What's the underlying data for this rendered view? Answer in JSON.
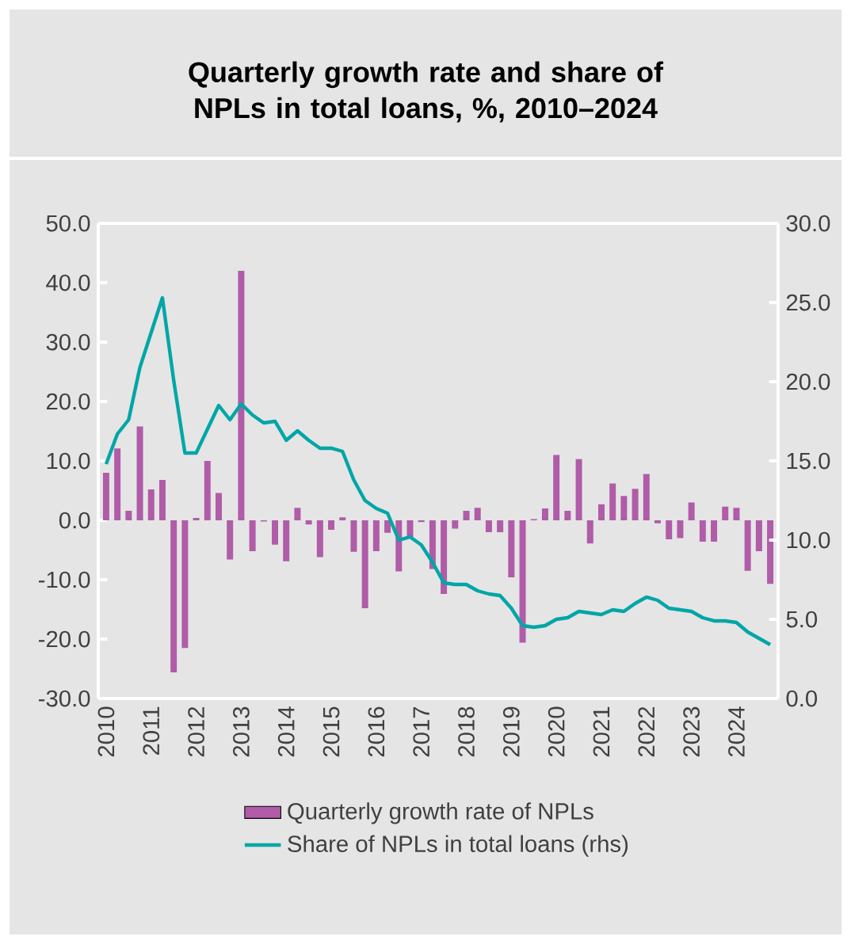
{
  "chart_data": {
    "type": "bar",
    "title": "Quarterly growth rate and share of NPLs in total loans, %, 2010–2024",
    "categories": [
      "2010",
      null,
      null,
      null,
      "2011",
      null,
      null,
      null,
      "2012",
      null,
      null,
      null,
      "2013",
      null,
      null,
      null,
      "2014",
      null,
      null,
      null,
      "2015",
      null,
      null,
      null,
      "2016",
      null,
      null,
      null,
      "2017",
      null,
      null,
      null,
      "2018",
      null,
      null,
      null,
      "2019",
      null,
      null,
      null,
      "2020",
      null,
      null,
      null,
      "2021",
      null,
      null,
      null,
      "2022",
      null,
      null,
      null,
      "2023",
      null,
      null,
      null,
      "2024",
      null,
      null,
      null
    ],
    "series": [
      {
        "name": "Quarterly growth rate of NPLs",
        "color": "#b05ca8",
        "values": [
          8.0,
          12.1,
          1.6,
          15.8,
          5.2,
          6.8,
          -25.6,
          -21.5,
          0.4,
          10.0,
          4.6,
          -6.6,
          42.0,
          -5.2,
          -0.2,
          -4.1,
          -6.9,
          2.1,
          -0.7,
          -6.2,
          -1.6,
          0.5,
          -5.3,
          -14.8,
          -5.2,
          -2.1,
          -8.6,
          -2.8,
          -0.3,
          -8.2,
          -12.4,
          -1.4,
          1.6,
          2.1,
          -2.0,
          -2.0,
          -9.6,
          -20.6,
          0.2,
          2.0,
          11.0,
          1.6,
          10.3,
          -3.9,
          2.7,
          6.2,
          4.1,
          5.3,
          7.8,
          -0.5,
          -3.2,
          -3.0,
          3.0,
          -3.6,
          -3.6,
          2.3,
          2.1,
          -8.5,
          -5.2,
          -10.7
        ]
      },
      {
        "name": "Share of NPLs in total loans (rhs)",
        "type": "line",
        "axis": "y2",
        "color": "#00a6a6",
        "values": [
          14.8,
          16.7,
          17.6,
          20.9,
          23.1,
          25.3,
          20.1,
          15.5,
          15.5,
          17.0,
          18.5,
          17.6,
          18.6,
          17.9,
          17.4,
          17.5,
          16.3,
          16.9,
          16.3,
          15.8,
          15.8,
          15.6,
          13.8,
          12.5,
          12.0,
          11.7,
          10.0,
          10.2,
          9.7,
          8.6,
          7.3,
          7.2,
          7.2,
          6.8,
          6.6,
          6.5,
          5.7,
          4.6,
          4.5,
          4.6,
          5.0,
          5.1,
          5.5,
          5.4,
          5.3,
          5.6,
          5.5,
          6.0,
          6.4,
          6.2,
          5.7,
          5.6,
          5.5,
          5.1,
          4.9,
          4.9,
          4.8,
          4.2,
          3.8,
          3.4
        ]
      }
    ],
    "ylim": [
      -30,
      50
    ],
    "yticks": [
      {
        "value": -30,
        "label": "-30.0"
      },
      {
        "value": -20,
        "label": "-20.0"
      },
      {
        "value": -10,
        "label": "-10.0"
      },
      {
        "value": 0,
        "label": "0.0"
      },
      {
        "value": 10,
        "label": "10.0"
      },
      {
        "value": 20,
        "label": "20.0"
      },
      {
        "value": 30,
        "label": "30.0"
      },
      {
        "value": 40,
        "label": "40.0"
      },
      {
        "value": 50,
        "label": "50.0"
      }
    ],
    "y2lim": [
      0,
      30
    ],
    "y2ticks": [
      {
        "value": 0,
        "label": "0.0"
      },
      {
        "value": 5,
        "label": "5.0"
      },
      {
        "value": 10,
        "label": "10.0"
      },
      {
        "value": 15,
        "label": "15.0"
      },
      {
        "value": 20,
        "label": "20.0"
      },
      {
        "value": 25,
        "label": "25.0"
      },
      {
        "value": 30,
        "label": "30.0"
      }
    ],
    "legend": "bottom"
  }
}
